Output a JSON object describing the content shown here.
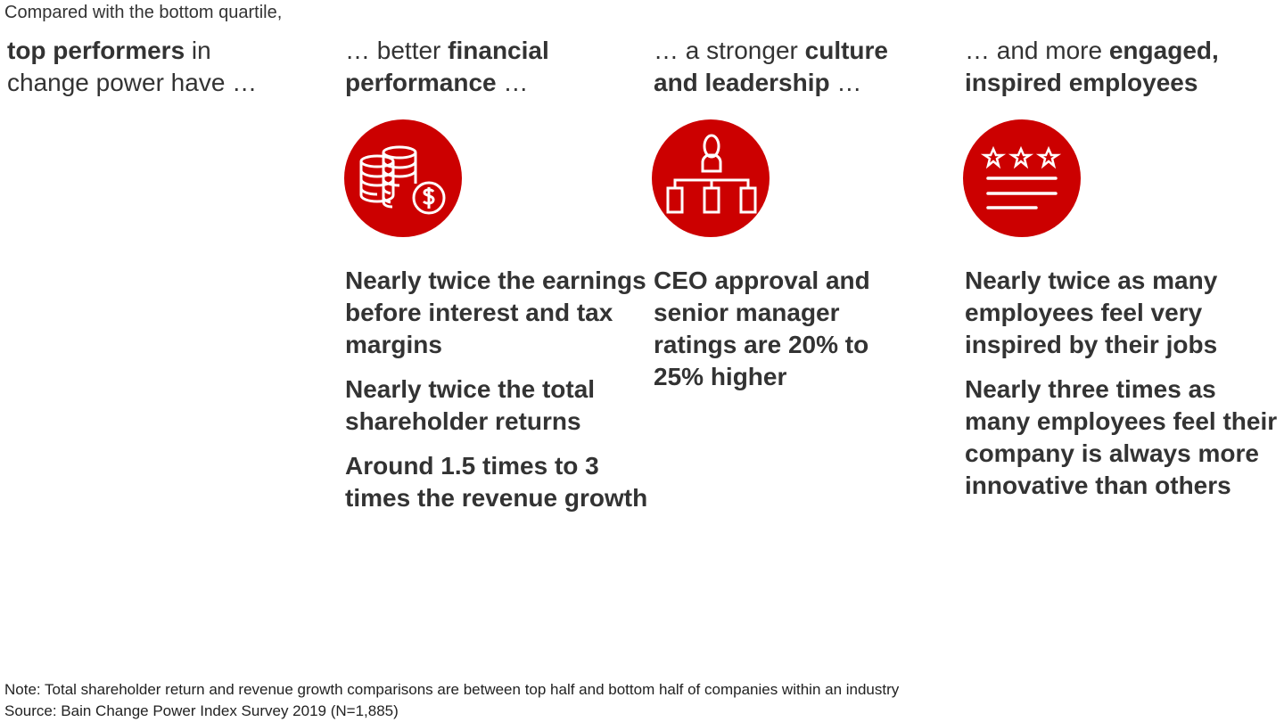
{
  "intro": "Compared with the bottom quartile,",
  "columns": [
    {
      "parts": [
        {
          "b": true,
          "t": "top performers"
        },
        {
          "b": false,
          "t": " in change power have …"
        }
      ]
    },
    {
      "parts": [
        {
          "b": false,
          "t": "… better "
        },
        {
          "b": true,
          "t": "financial performance"
        },
        {
          "b": false,
          "t": " …"
        }
      ],
      "icon": "coins-dollar-icon",
      "points": [
        "Nearly twice the earnings before interest and tax margins",
        "Nearly twice the total shareholder returns",
        "Around 1.5 times to 3 times the revenue growth"
      ]
    },
    {
      "parts": [
        {
          "b": false,
          "t": "… a stronger "
        },
        {
          "b": true,
          "t": "culture and leadership"
        },
        {
          "b": false,
          "t": " …"
        }
      ],
      "icon": "org-chart-icon",
      "points": [
        "CEO approval and senior manager ratings are 20% to 25% higher"
      ]
    },
    {
      "parts": [
        {
          "b": false,
          "t": "… and more "
        },
        {
          "b": true,
          "t": "engaged, inspired employees"
        }
      ],
      "icon": "star-rating-icon",
      "points": [
        "Nearly twice as many employees feel very inspired by their jobs",
        "Nearly three times as many employees feel their company is always more innovative than others"
      ]
    }
  ],
  "note": "Note: Total shareholder return and revenue growth comparisons are between top half and bottom half of companies within an industry",
  "source": "Source: Bain Change Power Index Survey 2019 (N=1,885)",
  "colors": {
    "accent": "#cc0000",
    "text": "#333333"
  }
}
